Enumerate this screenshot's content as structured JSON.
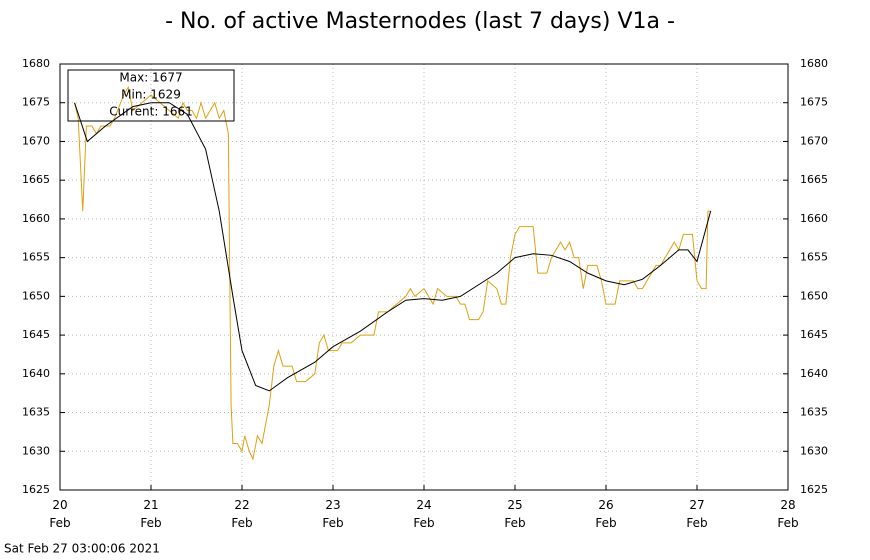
{
  "chart_data": {
    "type": "line",
    "title": "- No. of active Masternodes (last 7 days) V1a -",
    "annotations": [
      "Max: 1677",
      "Min: 1629",
      "Current: 1661"
    ],
    "footer": "Sat Feb 27 03:00:06 2021",
    "xlim": [
      20,
      28
    ],
    "xticks": [
      {
        "value": 20,
        "label": "20\nFeb"
      },
      {
        "value": 21,
        "label": "21\nFeb"
      },
      {
        "value": 22,
        "label": "22\nFeb"
      },
      {
        "value": 23,
        "label": "23\nFeb"
      },
      {
        "value": 24,
        "label": "24\nFeb"
      },
      {
        "value": 25,
        "label": "25\nFeb"
      },
      {
        "value": 26,
        "label": "26\nFeb"
      },
      {
        "value": 27,
        "label": "27\nFeb"
      },
      {
        "value": 28,
        "label": "28\nFeb"
      }
    ],
    "ylim": [
      1625,
      1680
    ],
    "yticks": [
      1625,
      1630,
      1635,
      1640,
      1645,
      1650,
      1655,
      1660,
      1665,
      1670,
      1675,
      1680
    ],
    "grid": true,
    "series": [
      {
        "color": "#e0a010",
        "x": [
          20.16,
          20.2,
          20.25,
          20.29,
          20.35,
          20.4,
          20.45,
          20.55,
          20.6,
          20.7,
          20.75,
          20.8,
          20.9,
          21.0,
          21.1,
          21.2,
          21.3,
          21.35,
          21.4,
          21.45,
          21.5,
          21.55,
          21.6,
          21.7,
          21.75,
          21.8,
          21.85,
          21.88,
          21.9,
          21.95,
          22.0,
          22.03,
          22.08,
          22.12,
          22.17,
          22.22,
          22.3,
          22.35,
          22.4,
          22.45,
          22.55,
          22.6,
          22.7,
          22.8,
          22.85,
          22.9,
          22.95,
          23.05,
          23.1,
          23.2,
          23.3,
          23.45,
          23.5,
          23.6,
          23.7,
          23.8,
          23.85,
          23.9,
          24.0,
          24.1,
          24.15,
          24.25,
          24.35,
          24.4,
          24.45,
          24.5,
          24.6,
          24.65,
          24.7,
          24.8,
          24.85,
          24.9,
          24.95,
          25.0,
          25.05,
          25.2,
          25.25,
          25.35,
          25.4,
          25.5,
          25.55,
          25.6,
          25.65,
          25.7,
          25.75,
          25.8,
          25.9,
          25.95,
          26.0,
          26.1,
          26.15,
          26.3,
          26.35,
          26.4,
          26.5,
          26.55,
          26.6,
          26.7,
          26.75,
          26.8,
          26.85,
          26.95,
          27.0,
          27.05,
          27.1,
          27.12,
          27.15
        ],
        "values": [
          1675,
          1673,
          1661,
          1672,
          1672,
          1671,
          1672,
          1672,
          1673,
          1676,
          1677,
          1674,
          1675,
          1676,
          1675,
          1674,
          1673,
          1675,
          1674,
          1674,
          1673,
          1675,
          1673,
          1675,
          1673,
          1674,
          1671,
          1636,
          1631,
          1631,
          1630,
          1632,
          1630,
          1629,
          1632,
          1631,
          1636,
          1641,
          1643,
          1641,
          1641,
          1639,
          1639,
          1640,
          1644,
          1645,
          1643,
          1643,
          1644,
          1644,
          1645,
          1645,
          1648,
          1648,
          1649,
          1650,
          1651,
          1650,
          1651,
          1649,
          1651,
          1650,
          1650,
          1649,
          1649,
          1647,
          1647,
          1648,
          1652,
          1651,
          1649,
          1649,
          1655,
          1658,
          1659,
          1659,
          1653,
          1653,
          1655,
          1657,
          1656,
          1657,
          1655,
          1655,
          1651,
          1654,
          1654,
          1652,
          1649,
          1649,
          1652,
          1652,
          1651,
          1651,
          1653,
          1654,
          1654,
          1656,
          1657,
          1656,
          1658,
          1658,
          1652,
          1651,
          1651,
          1661,
          1661
        ]
      },
      {
        "color": "#000000",
        "x": [
          20.16,
          20.3,
          20.5,
          20.8,
          21.0,
          21.2,
          21.4,
          21.6,
          21.75,
          21.9,
          22.0,
          22.15,
          22.3,
          22.5,
          22.8,
          23.0,
          23.3,
          23.6,
          23.8,
          24.0,
          24.2,
          24.4,
          24.6,
          24.8,
          25.0,
          25.2,
          25.4,
          25.6,
          25.8,
          26.0,
          26.2,
          26.4,
          26.6,
          26.8,
          26.9,
          27.0,
          27.15
        ],
        "values": [
          1675,
          1670,
          1672,
          1674.5,
          1675,
          1675,
          1673.5,
          1669,
          1661,
          1650,
          1643,
          1638.5,
          1637.8,
          1639.5,
          1641.5,
          1643.5,
          1645.5,
          1648,
          1649.5,
          1649.7,
          1649.5,
          1650,
          1651.5,
          1653,
          1655,
          1655.5,
          1655.3,
          1654.5,
          1653,
          1652,
          1651.5,
          1652.2,
          1654,
          1656,
          1656,
          1654.5,
          1661
        ]
      }
    ]
  }
}
